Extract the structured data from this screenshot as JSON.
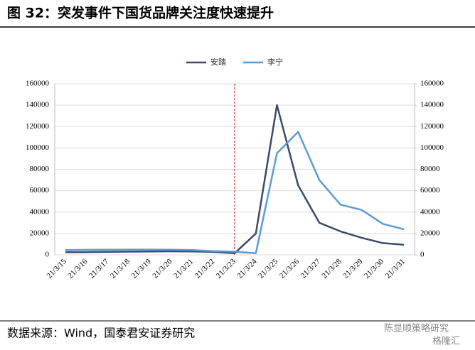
{
  "chart_data": {
    "type": "line",
    "title": "图 32：突发事件下国货品牌关注度快速提升",
    "source": "数据来源：Wind，国泰君安证券研究",
    "watermark": [
      "陈显顺策略研究",
      "格隆汇"
    ],
    "categories": [
      "21/3/15",
      "21/3/16",
      "21/3/17",
      "21/3/18",
      "21/3/19",
      "21/3/20",
      "21/3/21",
      "21/3/22",
      "21/3/23",
      "21/3/24",
      "21/3/25",
      "21/3/26",
      "21/3/27",
      "21/3/28",
      "21/3/29",
      "21/3/30",
      "21/3/31"
    ],
    "series": [
      {
        "name": "安踏",
        "color": "#3b4a6b",
        "values": [
          2500,
          2600,
          2800,
          3000,
          3200,
          3300,
          3200,
          2800,
          1500,
          20000,
          140000,
          65000,
          30000,
          22000,
          16000,
          11000,
          9500
        ]
      },
      {
        "name": "李宁",
        "color": "#5b9bd5",
        "axis": "y2",
        "values": [
          4500,
          4700,
          4800,
          4900,
          4900,
          4800,
          4500,
          3500,
          3000,
          1500,
          95000,
          115000,
          70000,
          47000,
          42000,
          29000,
          24000
        ]
      }
    ],
    "ylim": [
      0,
      160000
    ],
    "yticks": [
      0,
      20000,
      40000,
      60000,
      80000,
      100000,
      120000,
      140000,
      160000
    ],
    "y2lim": [
      0,
      160000
    ],
    "y2ticks": [
      0,
      20000,
      40000,
      60000,
      80000,
      100000,
      120000,
      140000,
      160000
    ],
    "grid": true,
    "event_line": {
      "category": "21/3/23",
      "color": "#c00000"
    }
  }
}
